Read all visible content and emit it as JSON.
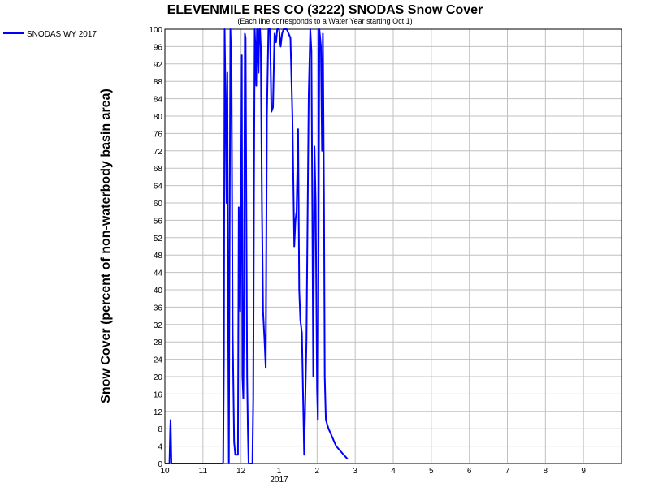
{
  "chart_data": {
    "type": "line",
    "title": "ELEVENMILE RES CO (3222) SNODAS Snow Cover",
    "subtitle": "(Each line corresponds to a Water Year starting Oct 1)",
    "ylabel": "Snow Cover (percent of non-waterbody basin area)",
    "xlabel": "",
    "ylim": [
      0,
      100
    ],
    "xlim": [
      0,
      12
    ],
    "grid": true,
    "legend_position": "top-left",
    "y_ticks": [
      "0",
      "4",
      "8",
      "12",
      "16",
      "20",
      "24",
      "28",
      "32",
      "36",
      "40",
      "44",
      "48",
      "52",
      "56",
      "60",
      "64",
      "68",
      "72",
      "76",
      "80",
      "84",
      "88",
      "92",
      "96",
      "100"
    ],
    "x_tick_labels": [
      "10",
      "11",
      "12",
      "1",
      "2",
      "3",
      "4",
      "5",
      "6",
      "7",
      "8",
      "9"
    ],
    "x_year_label": "2017",
    "series": [
      {
        "name": "SNODAS WY 2017",
        "color": "#0000ff",
        "points": [
          [
            0.0,
            0
          ],
          [
            0.12,
            0
          ],
          [
            0.14,
            8
          ],
          [
            0.15,
            10
          ],
          [
            0.16,
            5
          ],
          [
            0.17,
            0
          ],
          [
            1.53,
            0
          ],
          [
            1.55,
            25
          ],
          [
            1.57,
            100
          ],
          [
            1.6,
            80
          ],
          [
            1.62,
            60
          ],
          [
            1.64,
            90
          ],
          [
            1.66,
            40
          ],
          [
            1.68,
            0
          ],
          [
            1.7,
            50
          ],
          [
            1.72,
            100
          ],
          [
            1.75,
            90
          ],
          [
            1.78,
            30
          ],
          [
            1.82,
            5
          ],
          [
            1.85,
            2
          ],
          [
            1.92,
            2
          ],
          [
            1.94,
            59
          ],
          [
            1.96,
            40
          ],
          [
            1.98,
            35
          ],
          [
            2.0,
            60
          ],
          [
            2.02,
            94
          ],
          [
            2.04,
            20
          ],
          [
            2.06,
            15
          ],
          [
            2.08,
            40
          ],
          [
            2.1,
            99
          ],
          [
            2.12,
            98
          ],
          [
            2.14,
            60
          ],
          [
            2.16,
            20
          ],
          [
            2.18,
            8
          ],
          [
            2.2,
            0
          ],
          [
            2.3,
            0
          ],
          [
            2.32,
            15
          ],
          [
            2.34,
            63
          ],
          [
            2.36,
            100
          ],
          [
            2.38,
            95
          ],
          [
            2.4,
            87
          ],
          [
            2.42,
            100
          ],
          [
            2.44,
            95
          ],
          [
            2.46,
            90
          ],
          [
            2.48,
            100
          ],
          [
            2.5,
            100
          ],
          [
            2.52,
            96
          ],
          [
            2.55,
            60
          ],
          [
            2.58,
            35
          ],
          [
            2.62,
            28
          ],
          [
            2.65,
            22
          ],
          [
            2.68,
            80
          ],
          [
            2.72,
            100
          ],
          [
            2.76,
            100
          ],
          [
            2.8,
            81
          ],
          [
            2.84,
            82
          ],
          [
            2.88,
            99
          ],
          [
            2.92,
            97
          ],
          [
            2.95,
            100
          ],
          [
            3.0,
            100
          ],
          [
            3.04,
            96
          ],
          [
            3.08,
            99
          ],
          [
            3.12,
            100
          ],
          [
            3.2,
            100
          ],
          [
            3.3,
            98
          ],
          [
            3.35,
            80
          ],
          [
            3.4,
            50
          ],
          [
            3.43,
            56
          ],
          [
            3.46,
            58
          ],
          [
            3.5,
            77
          ],
          [
            3.53,
            40
          ],
          [
            3.56,
            33
          ],
          [
            3.6,
            30
          ],
          [
            3.66,
            2
          ],
          [
            3.72,
            28
          ],
          [
            3.78,
            85
          ],
          [
            3.82,
            100
          ],
          [
            3.85,
            95
          ],
          [
            3.88,
            50
          ],
          [
            3.9,
            20
          ],
          [
            3.93,
            73
          ],
          [
            3.96,
            60
          ],
          [
            4.0,
            17
          ],
          [
            4.02,
            10
          ],
          [
            4.06,
            100
          ],
          [
            4.1,
            96
          ],
          [
            4.13,
            72
          ],
          [
            4.15,
            99
          ],
          [
            4.18,
            60
          ],
          [
            4.2,
            20
          ],
          [
            4.23,
            10
          ],
          [
            4.3,
            8
          ],
          [
            4.4,
            6
          ],
          [
            4.45,
            5
          ],
          [
            4.5,
            4
          ],
          [
            4.6,
            3
          ],
          [
            4.7,
            2
          ],
          [
            4.8,
            1
          ]
        ]
      }
    ]
  }
}
